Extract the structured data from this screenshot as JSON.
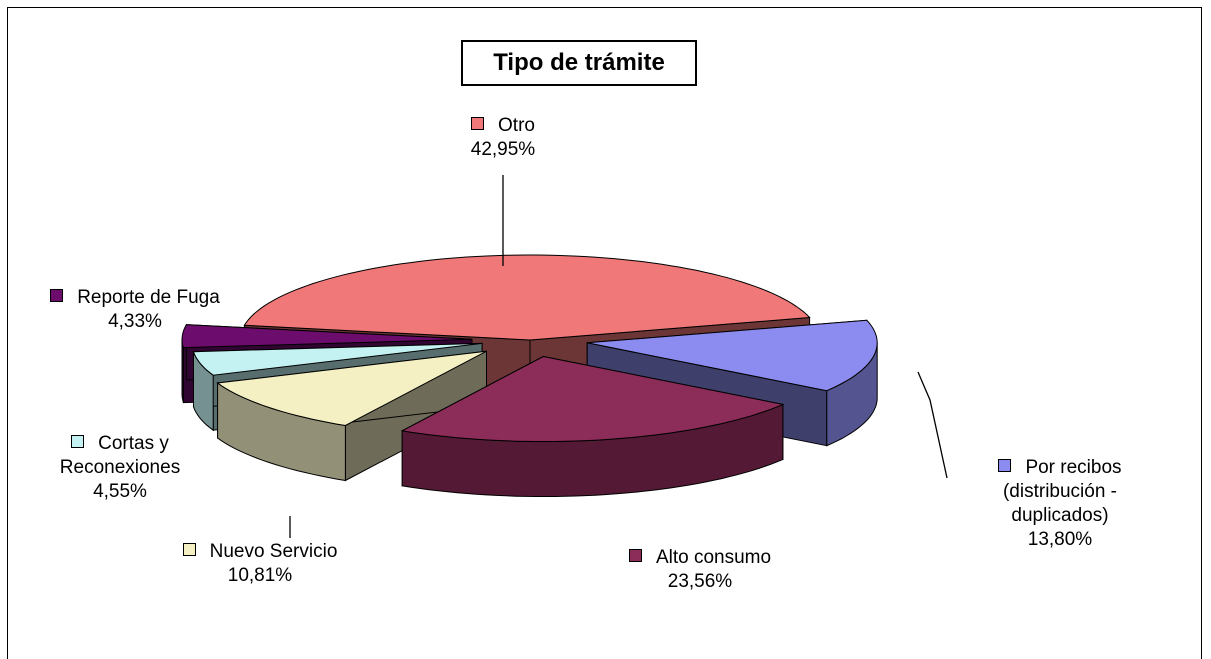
{
  "chart_data": {
    "type": "pie3d",
    "title": "Tipo de trámite",
    "categories": [
      "Otro",
      "Por recibos (distribución - duplicados)",
      "Alto consumo",
      "Nuevo Servicio",
      "Cortas y Reconexiones",
      "Reporte de Fuga"
    ],
    "values": [
      42.95,
      13.8,
      23.56,
      10.81,
      4.55,
      4.33
    ],
    "value_labels": [
      "42,95%",
      "13,80%",
      "23,56%",
      "10,81%",
      "4,55%",
      "4,33%"
    ],
    "colors": [
      "#f07878",
      "#8c8cf0",
      "#8c2c58",
      "#f4f0c4",
      "#c4f2f2",
      "#6c0c6c"
    ]
  }
}
